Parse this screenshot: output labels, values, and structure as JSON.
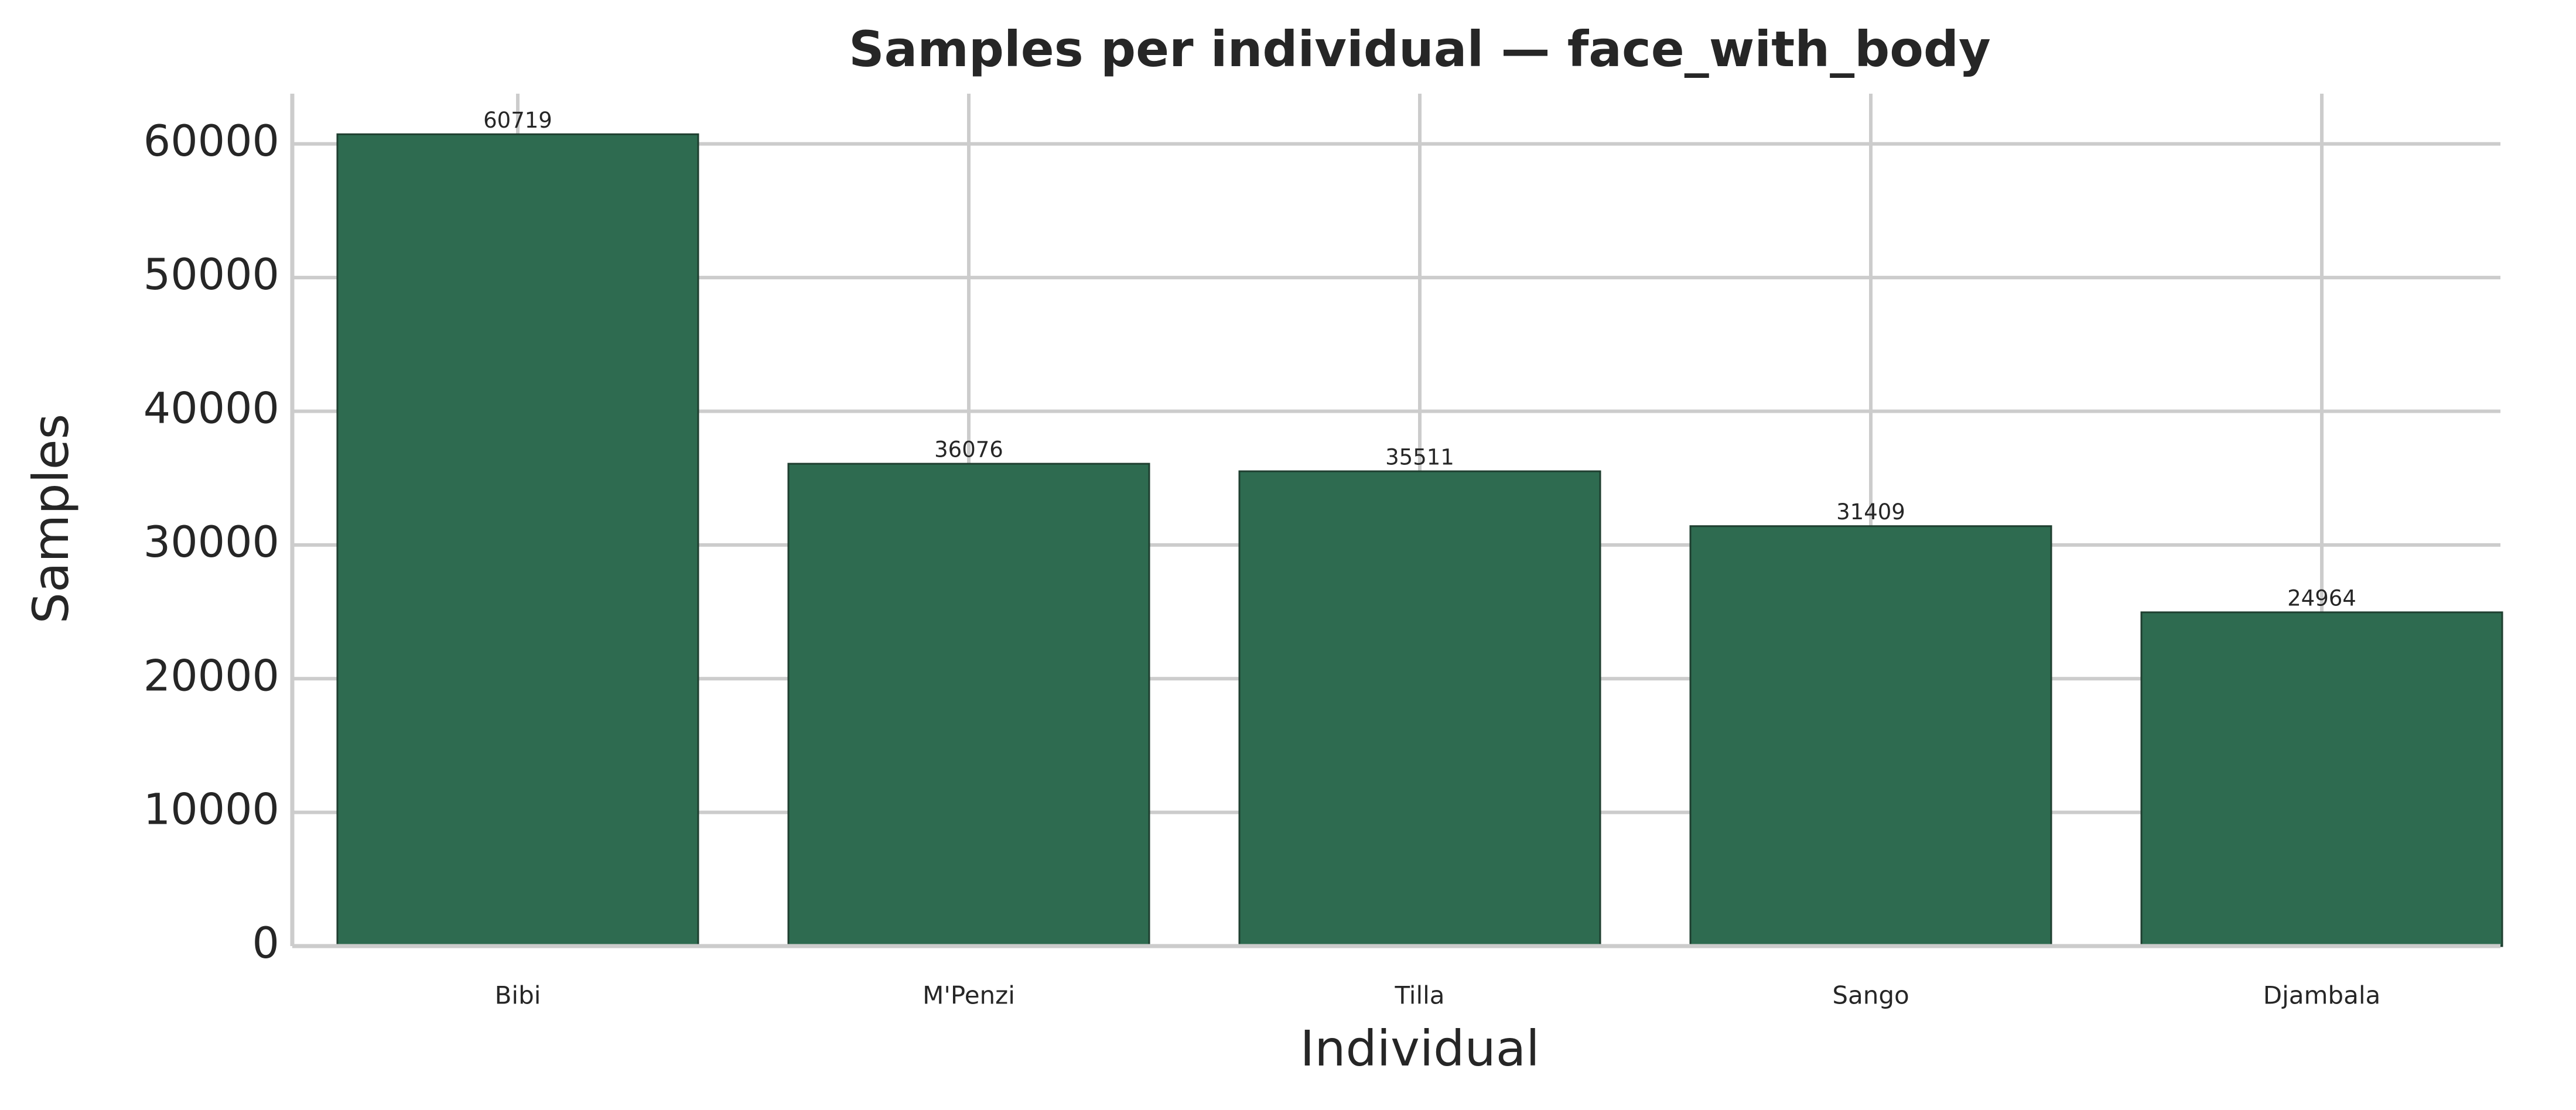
{
  "chart_data": {
    "type": "bar",
    "title": "Samples per individual — face_with_body",
    "x_label": "Individual",
    "y_label": "Samples",
    "categories": [
      "Bibi",
      "M'Penzi",
      "Tilla",
      "Sango",
      "Djambala"
    ],
    "values": [
      60719,
      36076,
      35511,
      31409,
      24964
    ],
    "color": "#2e6b50",
    "edge_color": "#1f3f30",
    "ylim": [
      0,
      63755
    ],
    "yticks": [
      0,
      10000,
      20000,
      30000,
      40000,
      50000,
      60000
    ],
    "grid": true,
    "show_value_labels": true
  }
}
